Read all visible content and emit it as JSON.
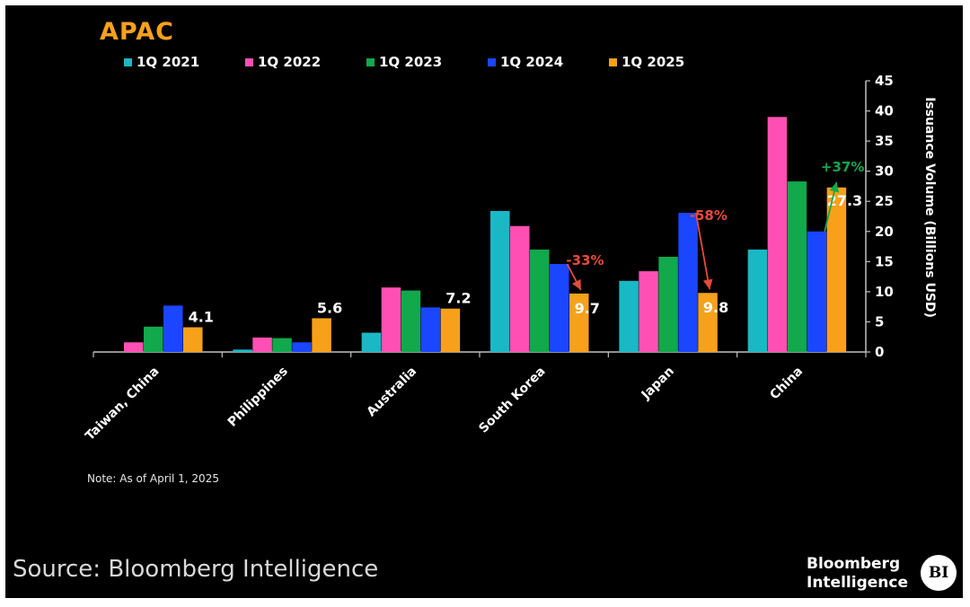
{
  "source_text": "Source: Bloomberg Intelligence",
  "note_text": "Note: As of April 1, 2025",
  "brand": {
    "line1": "Bloomberg",
    "line2": "Intelligence",
    "badge": "BI"
  },
  "colors": {
    "background": "#000000",
    "1Q 2021": "#1ab8c4",
    "1Q 2022": "#ff4fb4",
    "1Q 2023": "#12a84c",
    "1Q 2024": "#1a46ff",
    "1Q 2025": "#f7a11a",
    "title": "#f7a11a",
    "negative_annotation": "#e84a3b",
    "positive_annotation": "#12a84c"
  },
  "chart_data": {
    "type": "bar",
    "title": "APAC",
    "ylabel": "Issuance Volume (Billions USD)",
    "y_axis_position": "right",
    "ylim": [
      0,
      45
    ],
    "yticks": [
      0,
      5,
      10,
      15,
      20,
      25,
      30,
      35,
      40,
      45
    ],
    "grid": false,
    "legend_position": "top",
    "categories": [
      "Taiwan, China",
      "Philippines",
      "Australia",
      "South Korea",
      "Japan",
      "China"
    ],
    "series": [
      {
        "name": "1Q 2021",
        "values": [
          0,
          0.4,
          3.2,
          23.4,
          11.8,
          17
        ]
      },
      {
        "name": "1Q 2022",
        "values": [
          1.6,
          2.4,
          10.7,
          20.9,
          13.4,
          39
        ]
      },
      {
        "name": "1Q 2023",
        "values": [
          4.2,
          2.3,
          10.2,
          17,
          15.8,
          28.3
        ]
      },
      {
        "name": "1Q 2024",
        "values": [
          7.7,
          1.6,
          7.4,
          14.6,
          23.1,
          20
        ]
      },
      {
        "name": "1Q 2025",
        "values": [
          4.1,
          5.6,
          7.2,
          9.7,
          9.8,
          27.3
        ]
      }
    ],
    "data_labels": [
      {
        "category": "Taiwan, China",
        "series": "1Q 2025",
        "text": "4.1"
      },
      {
        "category": "Philippines",
        "series": "1Q 2025",
        "text": "5.6"
      },
      {
        "category": "Australia",
        "series": "1Q 2025",
        "text": "7.2"
      },
      {
        "category": "South Korea",
        "series": "1Q 2025",
        "text": "9.7"
      },
      {
        "category": "Japan",
        "series": "1Q 2025",
        "text": "9.8"
      },
      {
        "category": "China",
        "series": "1Q 2025",
        "text": "27.3"
      }
    ],
    "annotations": [
      {
        "category": "South Korea",
        "text": "-33%",
        "from_series": "1Q 2024",
        "to_series": "1Q 2025",
        "direction": "down"
      },
      {
        "category": "Japan",
        "text": "-58%",
        "from_series": "1Q 2024",
        "to_series": "1Q 2025",
        "direction": "down"
      },
      {
        "category": "China",
        "text": "+37%",
        "from_series": "1Q 2024",
        "to_series": "1Q 2025",
        "direction": "up"
      }
    ]
  }
}
